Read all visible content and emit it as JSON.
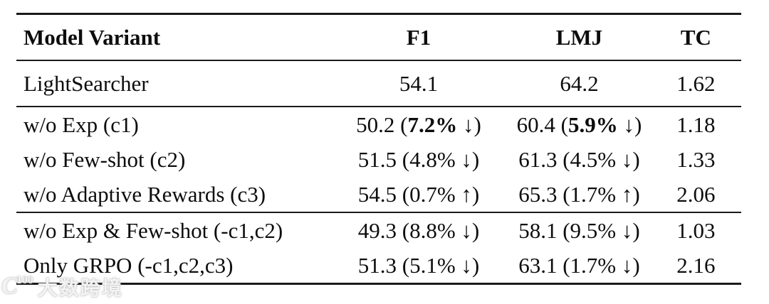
{
  "table": {
    "headers": {
      "variant": "Model Variant",
      "f1": "F1",
      "lmj": "LMJ",
      "tc": "TC"
    },
    "rows": [
      {
        "variant": "LightSearcher",
        "f1": {
          "pre": "54.1",
          "pct": "",
          "post": "",
          "cls": "mid"
        },
        "lmj": {
          "pre": "64.2",
          "pct": "",
          "post": "",
          "cls": "mid"
        },
        "tc": "1.62"
      },
      {
        "variant": "w/o Exp (c1)",
        "f1": {
          "pre": "50.2 (",
          "pct": "7.2%",
          "post": " ↓)",
          "cls": "mid bold"
        },
        "lmj": {
          "pre": "60.4 (",
          "pct": "5.9%",
          "post": " ↓)",
          "cls": "mid bold"
        },
        "tc": "1.18"
      },
      {
        "variant": "w/o Few-shot (c2)",
        "f1": {
          "pre": "51.5 (",
          "pct": "4.8%",
          "post": " ↓)",
          "cls": "mid"
        },
        "lmj": {
          "pre": "61.3 (",
          "pct": "4.5%",
          "post": " ↓)",
          "cls": "mid"
        },
        "tc": "1.33"
      },
      {
        "variant": "w/o Adaptive Rewards (c3)",
        "f1": {
          "pre": "54.5 (",
          "pct": "0.7%",
          "post": " ↑)",
          "cls": "mid"
        },
        "lmj": {
          "pre": "65.3 (",
          "pct": "1.7%",
          "post": " ↑)",
          "cls": "mid"
        },
        "tc": "2.06"
      },
      {
        "variant": "w/o Exp & Few-shot (-c1,c2)",
        "f1": {
          "pre": "49.3 (",
          "pct": "8.8%",
          "post": " ↓)",
          "cls": "mid"
        },
        "lmj": {
          "pre": "58.1 (",
          "pct": "9.5%",
          "post": " ↓)",
          "cls": "mid"
        },
        "tc": "1.03"
      },
      {
        "variant": "Only GRPO (-c1,c2,c3)",
        "f1": {
          "pre": "51.3 (",
          "pct": "5.1%",
          "post": " ↓)",
          "cls": "mid"
        },
        "lmj": {
          "pre": "63.1 (",
          "pct": "1.7%",
          "post": " ↓)",
          "cls": "mid"
        },
        "tc": "2.16"
      }
    ]
  },
  "watermark": {
    "logo_main": "C",
    "logo_sup": "100",
    "text": "大数跨境"
  },
  "chart_data": {
    "type": "table",
    "columns": [
      "Model Variant",
      "F1",
      "LMJ",
      "TC"
    ],
    "rows": [
      [
        "LightSearcher",
        "54.1",
        "64.2",
        "1.62"
      ],
      [
        "w/o Exp (c1)",
        "50.2 (7.2% ↓)",
        "60.4 (5.9% ↓)",
        "1.18"
      ],
      [
        "w/o Few-shot (c2)",
        "51.5 (4.8% ↓)",
        "61.3 (4.5% ↓)",
        "1.33"
      ],
      [
        "w/o Adaptive Rewards (c3)",
        "54.5 (0.7% ↑)",
        "65.3 (1.7% ↑)",
        "2.06"
      ],
      [
        "w/o Exp & Few-shot (-c1,c2)",
        "49.3 (8.8% ↓)",
        "58.1 (9.5% ↓)",
        "1.03"
      ],
      [
        "Only GRPO (-c1,c2,c3)",
        "51.3 (5.1% ↓)",
        "63.1 (1.7% ↓)",
        "2.16"
      ]
    ],
    "notes": {
      "rule_style": "booktabs: thick top/bottom rules, thin midrules after header, after baseline row, and after (c3) row",
      "bold_cells": "percent deltas in row 'w/o Exp (c1)' are bold",
      "text_color": "#0d0d0d",
      "background": "#ffffff"
    }
  }
}
